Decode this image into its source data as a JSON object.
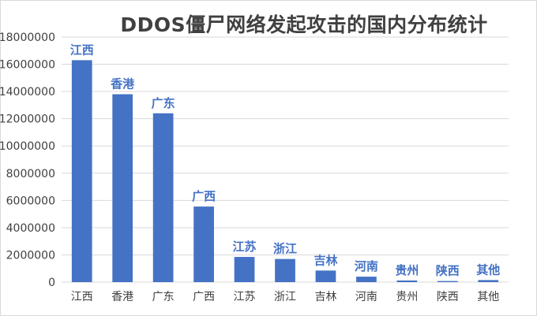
{
  "chart_data": {
    "type": "bar",
    "title": "DDOS僵尸网络发起攻击的国内分布统计",
    "xlabel": "",
    "ylabel": "",
    "categories": [
      "江西",
      "香港",
      "广东",
      "广西",
      "江苏",
      "浙江",
      "吉林",
      "河南",
      "贵州",
      "陕西",
      "其他"
    ],
    "values": [
      16300000,
      13800000,
      12400000,
      5550000,
      1850000,
      1700000,
      850000,
      400000,
      120000,
      80000,
      150000
    ],
    "data_labels": [
      "江西",
      "香港",
      "广东",
      "广西",
      "江苏",
      "浙江",
      "吉林",
      "河南",
      "贵州",
      "陕西",
      "其他"
    ],
    "ylim": [
      0,
      18000000
    ],
    "yticks": [
      "0",
      "2000000",
      "4000000",
      "6000000",
      "8000000",
      "10000000",
      "12000000",
      "14000000",
      "16000000",
      "18000000"
    ],
    "grid": true,
    "legend": "none",
    "bar_color": "#4472c4",
    "label_color": "#4472c4",
    "grid_color": "#d9d9d9"
  }
}
